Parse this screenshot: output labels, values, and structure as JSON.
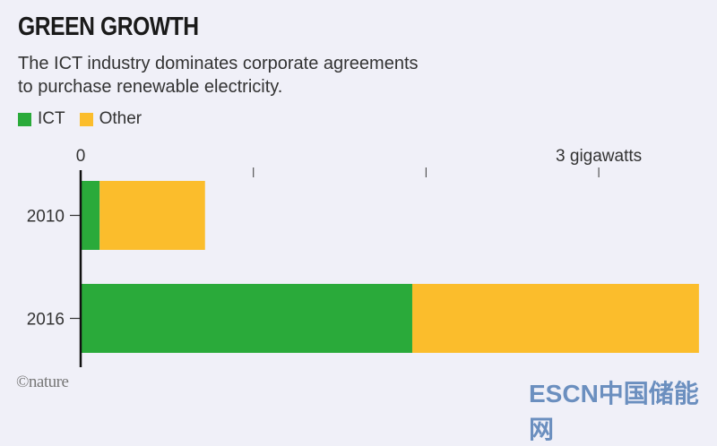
{
  "title": "GREEN GROWTH",
  "subtitle_lines": [
    "The ICT industry dominates corporate agreements",
    "to purchase renewable electricity."
  ],
  "credit": "©nature",
  "watermark": "ESCN中国储能网",
  "chart_data": {
    "type": "bar",
    "orientation": "horizontal",
    "stacked": true,
    "categories": [
      "2010",
      "2016"
    ],
    "series": [
      {
        "name": "ICT",
        "color": "#2aaa3a",
        "values": [
          0.11,
          1.92
        ]
      },
      {
        "name": "Other",
        "color": "#fbbd2c",
        "values": [
          0.61,
          1.66
        ]
      }
    ],
    "xlim": [
      0,
      3.6
    ],
    "xticks": [
      0,
      1,
      2,
      3
    ],
    "xtick_labels": {
      "0": "0",
      "3": "3 gigawatts"
    },
    "grid": false,
    "legend": "top-left"
  }
}
